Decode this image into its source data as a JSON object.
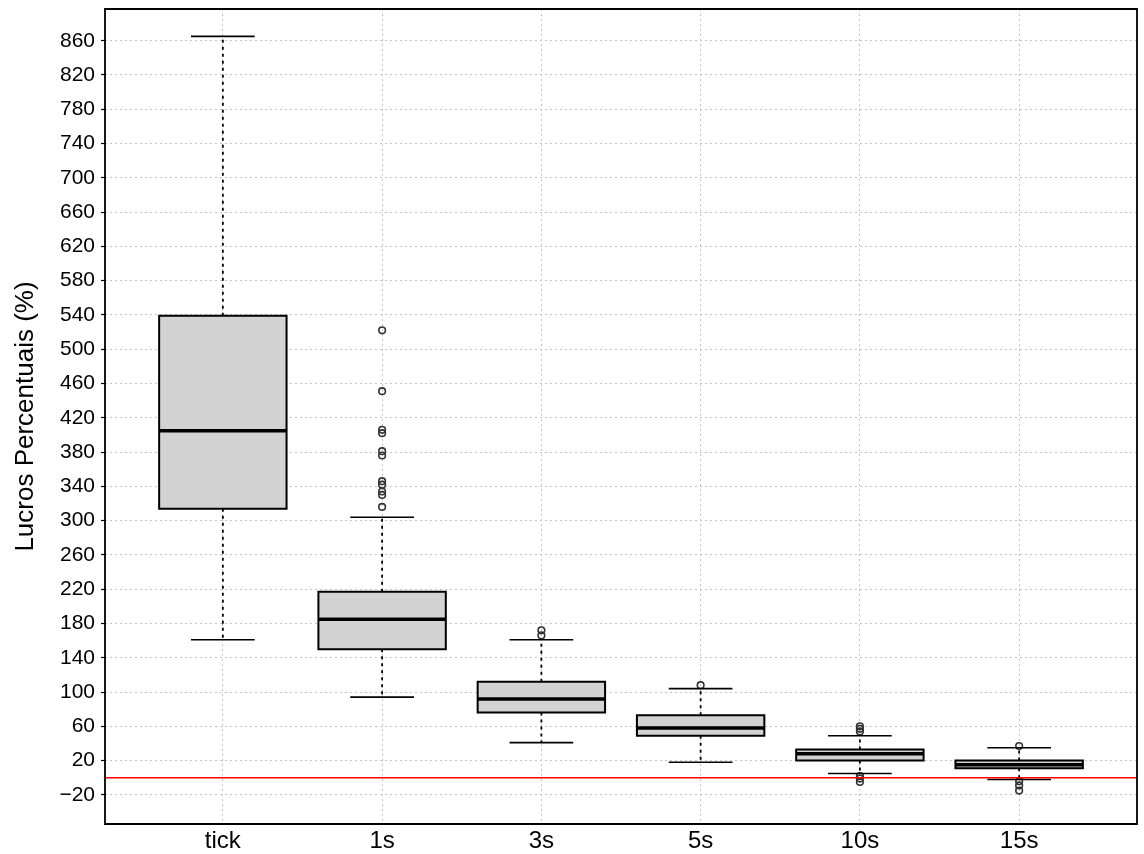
{
  "chart_data": {
    "type": "box",
    "categories": [
      "tick",
      "1s",
      "3s",
      "5s",
      "10s",
      "15s"
    ],
    "ylabel": "Lucros Percentuais (%)",
    "color": "#d3d3d3",
    "marker": "circle",
    "boxes": [
      {
        "low": 161,
        "q1": 314,
        "median": 405,
        "q3": 539,
        "high": 865
      },
      {
        "low": 94,
        "q1": 150,
        "median": 185,
        "q3": 217,
        "high": 304,
        "outliers": [
          316,
          330,
          334,
          342,
          346,
          376,
          381,
          402,
          406,
          451,
          522
        ]
      },
      {
        "low": 41,
        "q1": 76,
        "median": 92,
        "q3": 112,
        "high": 161,
        "outliers": [
          166,
          172
        ]
      },
      {
        "low": 18,
        "q1": 49,
        "median": 58,
        "q3": 73,
        "high": 104,
        "outliers": [
          108
        ]
      },
      {
        "low": 5,
        "q1": 20,
        "median": 28,
        "q3": 33,
        "high": 49,
        "outliers": [
          -5,
          -1,
          2,
          54,
          57,
          60
        ]
      },
      {
        "low": -2,
        "q1": 11,
        "median": 15,
        "q3": 20,
        "high": 35,
        "outliers": [
          -15,
          -9,
          -4,
          37
        ]
      }
    ],
    "ylim": [
      -54,
      897
    ],
    "yticks": [
      {
        "value": -20,
        "label": "−20"
      },
      20,
      60,
      100,
      140,
      180,
      220,
      260,
      300,
      340,
      380,
      420,
      460,
      500,
      540,
      580,
      620,
      660,
      700,
      740,
      780,
      820,
      860
    ],
    "grid": true,
    "ref_lines": [
      {
        "axis": "y",
        "value": 0,
        "color": "#ff0000"
      }
    ]
  }
}
